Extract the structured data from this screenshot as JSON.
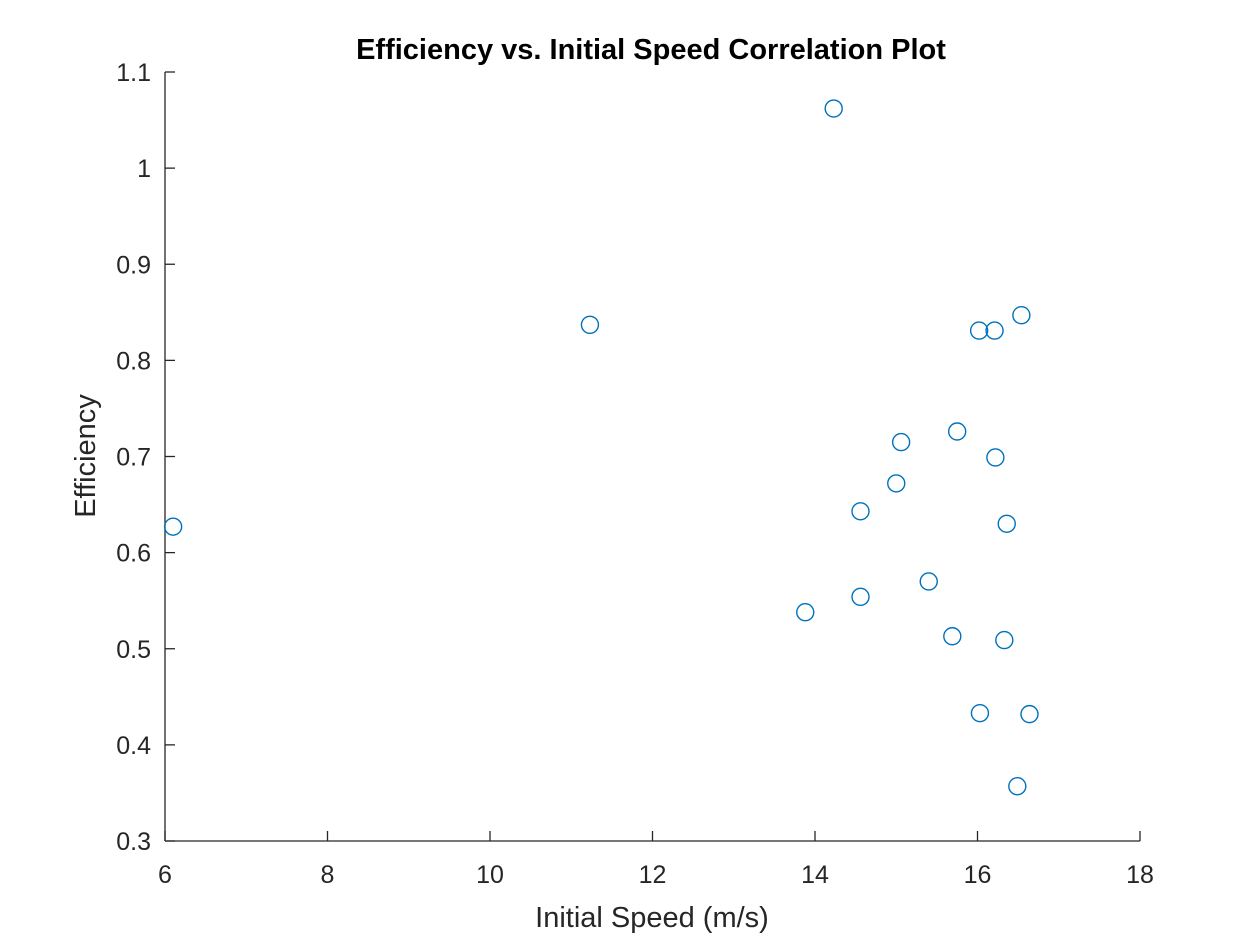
{
  "chart_data": {
    "type": "scatter",
    "title": "Efficiency vs. Initial Speed Correlation Plot",
    "xlabel": "Initial Speed (m/s)",
    "ylabel": "Efficiency",
    "xlim": [
      6,
      18
    ],
    "ylim": [
      0.3,
      1.1
    ],
    "xticks": [
      6,
      8,
      10,
      12,
      14,
      16,
      18
    ],
    "yticks": [
      0.3,
      0.4,
      0.5,
      0.6,
      0.7,
      0.8,
      0.9,
      1,
      1.1
    ],
    "xtick_labels": [
      "6",
      "8",
      "10",
      "12",
      "14",
      "16",
      "18"
    ],
    "ytick_labels": [
      "0.3",
      "0.4",
      "0.5",
      "0.6",
      "0.7",
      "0.8",
      "0.9",
      "1",
      "1.1"
    ],
    "grid": false,
    "marker_color": "#0072BD",
    "series": [
      {
        "points": [
          {
            "x": 6.1,
            "y": 0.627
          },
          {
            "x": 11.23,
            "y": 0.837
          },
          {
            "x": 14.23,
            "y": 1.062
          },
          {
            "x": 13.88,
            "y": 0.538
          },
          {
            "x": 14.56,
            "y": 0.554
          },
          {
            "x": 14.56,
            "y": 0.643
          },
          {
            "x": 15.0,
            "y": 0.672
          },
          {
            "x": 15.06,
            "y": 0.715
          },
          {
            "x": 15.4,
            "y": 0.57
          },
          {
            "x": 15.69,
            "y": 0.513
          },
          {
            "x": 15.75,
            "y": 0.726
          },
          {
            "x": 16.02,
            "y": 0.831
          },
          {
            "x": 16.03,
            "y": 0.433
          },
          {
            "x": 16.21,
            "y": 0.831
          },
          {
            "x": 16.22,
            "y": 0.699
          },
          {
            "x": 16.33,
            "y": 0.509
          },
          {
            "x": 16.36,
            "y": 0.63
          },
          {
            "x": 16.49,
            "y": 0.357
          },
          {
            "x": 16.54,
            "y": 0.847
          },
          {
            "x": 16.64,
            "y": 0.432
          }
        ]
      }
    ]
  }
}
